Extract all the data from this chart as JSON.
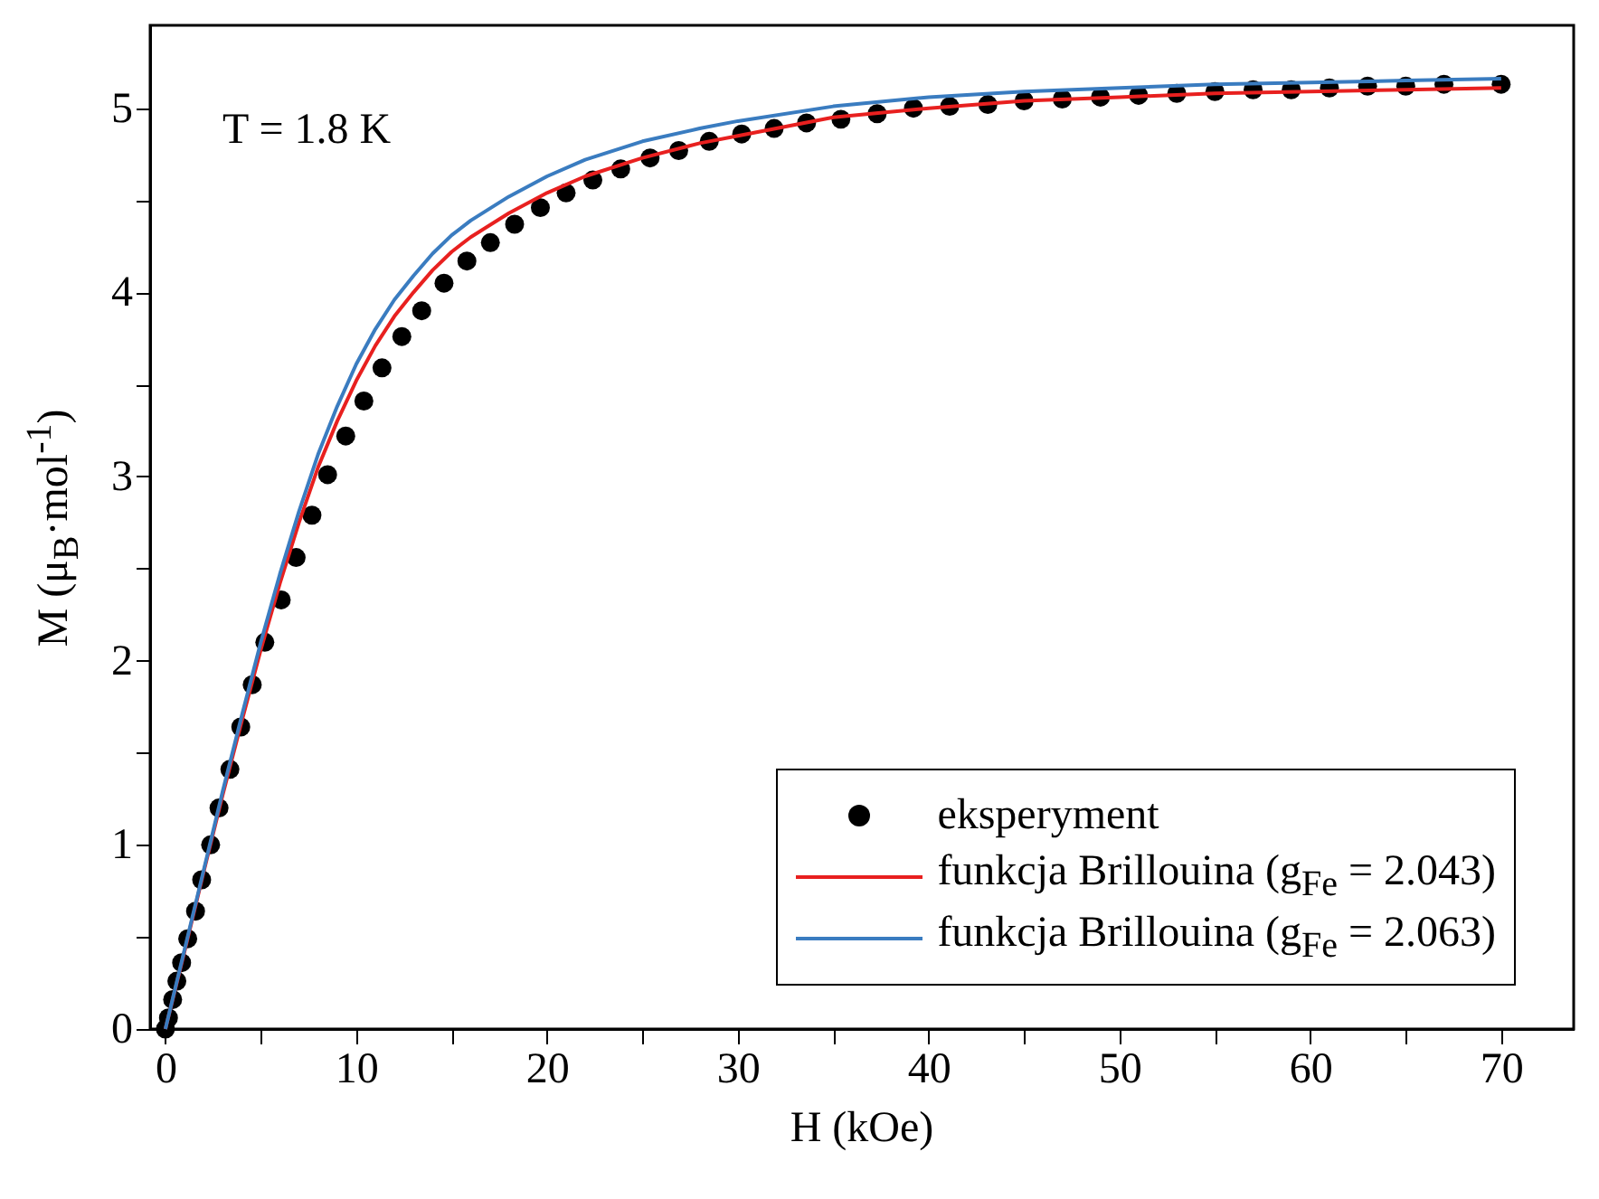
{
  "chart_data": {
    "type": "scatter",
    "xlabel": "H (kOe)",
    "ylabel": "M (μ$_{B}$·mol$^{-1}$)",
    "annotations": [
      "T = 1.8 K"
    ],
    "xlim": [
      -0.8,
      73.8
    ],
    "xticks": [
      0,
      {
        "value": 5,
        "label": null
      },
      10,
      {
        "value": 15,
        "label": null
      },
      20,
      {
        "value": 25,
        "label": null
      },
      30,
      {
        "value": 35,
        "label": null
      },
      40,
      {
        "value": 45,
        "label": null
      },
      50,
      {
        "value": 55,
        "label": null
      },
      60,
      {
        "value": 65,
        "label": null
      },
      70
    ],
    "ylim": [
      0,
      5.45
    ],
    "yticks": [
      0,
      {
        "value": 0.5,
        "label": null
      },
      1,
      {
        "value": 1.5,
        "label": null
      },
      2,
      {
        "value": 2.5,
        "label": null
      },
      3,
      {
        "value": 3.5,
        "label": null
      },
      4,
      {
        "value": 4.5,
        "label": null
      },
      5
    ],
    "grid": false,
    "legend": "bottom right",
    "series": [
      {
        "name": "eksperyment",
        "marker": "circle",
        "color": "#000000",
        "x": [
          0,
          0.16,
          0.38,
          0.6,
          0.85,
          1.17,
          1.58,
          1.9,
          2.37,
          2.81,
          3.38,
          3.95,
          4.55,
          5.21,
          6.07,
          6.85,
          7.68,
          8.5,
          9.45,
          10.4,
          11.35,
          12.39,
          13.43,
          14.6,
          15.8,
          17.03,
          18.3,
          19.65,
          21.0,
          22.4,
          23.86,
          25.4,
          26.9,
          28.5,
          30.2,
          31.9,
          33.6,
          35.4,
          37.3,
          39.2,
          41.1,
          43.1,
          45,
          47,
          49,
          51,
          53,
          55,
          57,
          59,
          61,
          63,
          65,
          67,
          70
        ],
        "values": [
          0,
          0.06,
          0.16,
          0.26,
          0.36,
          0.49,
          0.64,
          0.81,
          1.0,
          1.2,
          1.41,
          1.64,
          1.87,
          2.1,
          2.33,
          2.56,
          2.79,
          3.01,
          3.22,
          3.41,
          3.59,
          3.76,
          3.9,
          4.05,
          4.17,
          4.27,
          4.37,
          4.46,
          4.54,
          4.61,
          4.67,
          4.73,
          4.77,
          4.82,
          4.86,
          4.89,
          4.92,
          4.94,
          4.97,
          5.0,
          5.01,
          5.02,
          5.04,
          5.05,
          5.06,
          5.07,
          5.08,
          5.09,
          5.1,
          5.1,
          5.11,
          5.12,
          5.12,
          5.13,
          5.13
        ]
      },
      {
        "name": "funkcja Brillouina (g$_{Fe}$ = 2.043)",
        "type": "line",
        "color": "#e8201f",
        "x": [
          0,
          1,
          2,
          3,
          4,
          5,
          6,
          7,
          8,
          9,
          10,
          11,
          12,
          13,
          14,
          15,
          16,
          18,
          20,
          22,
          25,
          28,
          30,
          35,
          40,
          45,
          50,
          55,
          60,
          65,
          70
        ],
        "values": [
          0,
          0.42,
          0.85,
          1.27,
          1.67,
          2.06,
          2.42,
          2.75,
          3.05,
          3.3,
          3.52,
          3.71,
          3.87,
          4.0,
          4.12,
          4.22,
          4.3,
          4.43,
          4.54,
          4.63,
          4.73,
          4.81,
          4.85,
          4.95,
          5.0,
          5.04,
          5.06,
          5.08,
          5.09,
          5.1,
          5.11
        ]
      },
      {
        "name": "funkcja Brillouina (g$_{Fe}$ = 2.063)",
        "type": "line",
        "color": "#3a7cc0",
        "x": [
          0,
          1,
          2,
          3,
          4,
          5,
          6,
          7,
          8,
          9,
          10,
          11,
          12,
          13,
          14,
          15,
          16,
          18,
          20,
          22,
          25,
          28,
          30,
          35,
          40,
          45,
          50,
          55,
          60,
          65,
          70
        ],
        "values": [
          0,
          0.43,
          0.86,
          1.29,
          1.7,
          2.1,
          2.47,
          2.81,
          3.12,
          3.38,
          3.61,
          3.8,
          3.96,
          4.09,
          4.21,
          4.31,
          4.39,
          4.52,
          4.63,
          4.72,
          4.82,
          4.89,
          4.93,
          5.01,
          5.06,
          5.09,
          5.11,
          5.13,
          5.14,
          5.15,
          5.16
        ]
      }
    ]
  }
}
